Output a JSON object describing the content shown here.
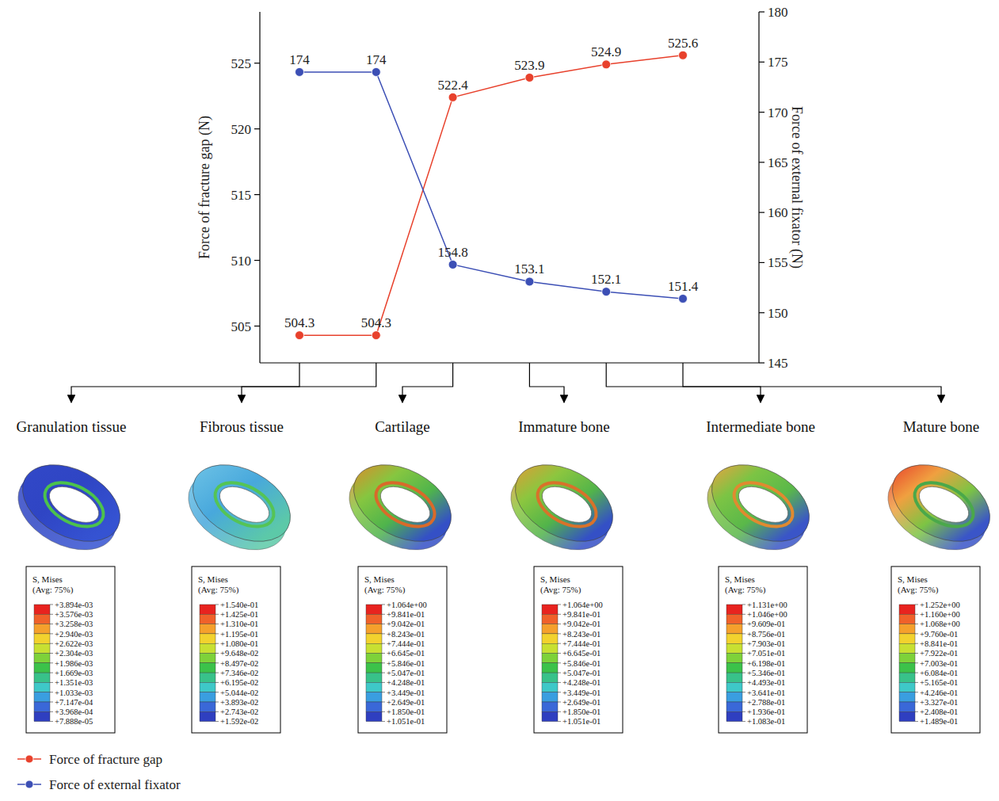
{
  "chart_data": {
    "type": "line",
    "categories": [
      "Granulation tissue",
      "Fibrous tissue",
      "Cartilage",
      "Immature bone",
      "Intermediate bone",
      "Mature bone"
    ],
    "series": [
      {
        "name": "Force of fracture gap",
        "color": "#e8412c",
        "marker": "circle",
        "values": [
          504.3,
          504.3,
          522.4,
          523.9,
          524.9,
          525.6
        ]
      },
      {
        "name": "Force of external fixator",
        "color": "#3c4fb5",
        "marker": "circle",
        "axis": "y2",
        "values": [
          174,
          174,
          154.8,
          153.1,
          152.1,
          151.4
        ]
      }
    ],
    "y_label": "Force of fracture gap (N)",
    "y2_label": "Force of external fixator (N)",
    "ylim": [
      502.2,
      528.9
    ],
    "yticks": [
      505,
      510,
      515,
      520,
      525
    ],
    "y2lim": [
      145,
      180
    ],
    "y2ticks": [
      145,
      150,
      155,
      160,
      165,
      170,
      175,
      180
    ],
    "data_labels": true,
    "grid": false,
    "legend": "bottom-left"
  },
  "contour_legends": [
    {
      "title": "S, Mises",
      "subtitle": "(Avg: 75%)",
      "labels": [
        "+3.894e-03",
        "+3.576e-03",
        "+3.258e-03",
        "+2.940e-03",
        "+2.622e-03",
        "+2.304e-03",
        "+1.986e-03",
        "+1.669e-03",
        "+1.351e-03",
        "+1.033e-03",
        "+7.147e-04",
        "+3.968e-04",
        "+7.888e-05"
      ]
    },
    {
      "title": "S, Mises",
      "subtitle": "(Avg: 75%)",
      "labels": [
        "+1.540e-01",
        "+1.425e-01",
        "+1.310e-01",
        "+1.195e-01",
        "+1.080e-01",
        "+9.648e-02",
        "+8.497e-02",
        "+7.346e-02",
        "+6.195e-02",
        "+5.044e-02",
        "+3.893e-02",
        "+2.743e-02",
        "+1.592e-02"
      ]
    },
    {
      "title": "S, Mises",
      "subtitle": "(Avg: 75%)",
      "labels": [
        "+1.064e+00",
        "+9.841e-01",
        "+9.042e-01",
        "+8.243e-01",
        "+7.444e-01",
        "+6.645e-01",
        "+5.846e-01",
        "+5.047e-01",
        "+4.248e-01",
        "+3.449e-01",
        "+2.649e-01",
        "+1.850e-01",
        "+1.051e-01"
      ]
    },
    {
      "title": "S, Mises",
      "subtitle": "(Avg: 75%)",
      "labels": [
        "+1.064e+00",
        "+9.841e-01",
        "+9.042e-01",
        "+8.243e-01",
        "+7.444e-01",
        "+6.645e-01",
        "+5.846e-01",
        "+5.047e-01",
        "+4.248e-01",
        "+3.449e-01",
        "+2.649e-01",
        "+1.850e-01",
        "+1.051e-01"
      ]
    },
    {
      "title": "S, Mises",
      "subtitle": "(Avg: 75%)",
      "labels": [
        "+1.131e+00",
        "+1.046e+00",
        "+9.609e-01",
        "+8.756e-01",
        "+7.903e-01",
        "+7.051e-01",
        "+6.198e-01",
        "+5.346e-01",
        "+4.493e-01",
        "+3.641e-01",
        "+2.788e-01",
        "+1.936e-01",
        "+1.083e-01"
      ]
    },
    {
      "title": "S, Mises",
      "subtitle": "(Avg: 75%)",
      "labels": [
        "+1.252e+00",
        "+1.160e+00",
        "+1.068e+00",
        "+9.760e-01",
        "+8.841e-01",
        "+7.922e-01",
        "+7.003e-01",
        "+6.084e-01",
        "+5.165e-01",
        "+4.246e-01",
        "+3.327e-01",
        "+2.408e-01",
        "+1.489e-01"
      ]
    }
  ]
}
